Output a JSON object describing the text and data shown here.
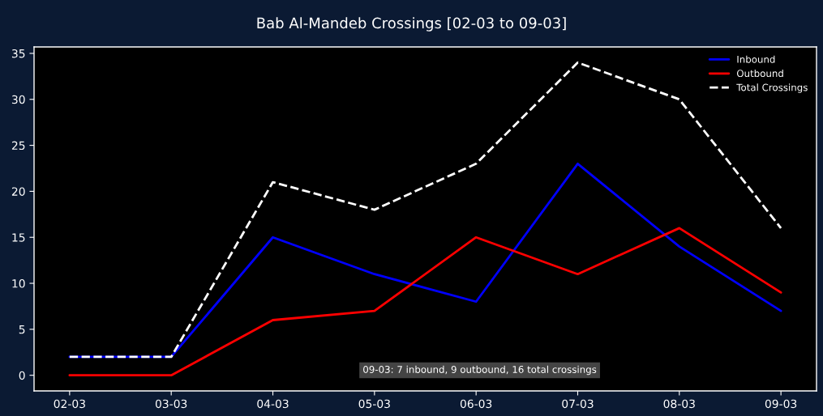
{
  "chart_data": {
    "type": "line",
    "title": "Bab Al-Mandeb Crossings [02-03 to 09-03]",
    "categories": [
      "02-03",
      "03-03",
      "04-03",
      "05-03",
      "06-03",
      "07-03",
      "08-03",
      "09-03"
    ],
    "series": [
      {
        "name": "Inbound",
        "color": "#0000ff",
        "values": [
          2,
          2,
          15,
          11,
          8,
          23,
          14,
          7
        ],
        "line_style": "solid"
      },
      {
        "name": "Outbound",
        "color": "#ff0000",
        "values": [
          0,
          0,
          6,
          7,
          15,
          11,
          16,
          9
        ],
        "line_style": "solid"
      },
      {
        "name": "Total Crossings",
        "color": "#ffffff",
        "values": [
          2,
          2,
          21,
          18,
          23,
          34,
          30,
          16
        ],
        "line_style": "dashed"
      }
    ],
    "ylim": [
      -1.7,
      35.7
    ],
    "yticks": [
      0,
      5,
      10,
      15,
      20,
      25,
      30,
      35
    ],
    "annotations": [
      "09-03: 7 inbound, 9 outbound, 16 total crossings"
    ],
    "legend": "top right",
    "grid": false
  }
}
